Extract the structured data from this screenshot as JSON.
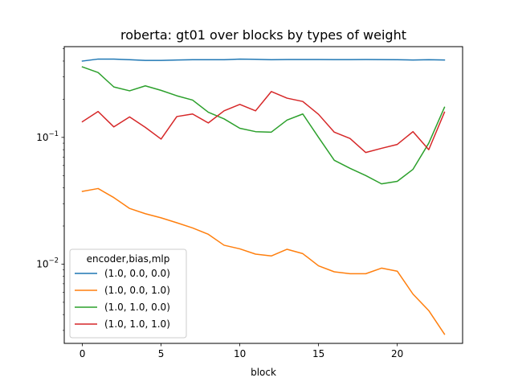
{
  "chart_data": {
    "type": "line",
    "title": "roberta: gt01 over blocks by types of weight",
    "xlabel": "block",
    "ylabel": "",
    "yscale": "log",
    "xlim": [
      -1.15,
      24.15
    ],
    "ylim": [
      0.00237,
      0.52
    ],
    "x_ticks": [
      0,
      5,
      10,
      15,
      20
    ],
    "y_ticks": [
      {
        "value": 0.1,
        "base": "10",
        "exp": "−1"
      },
      {
        "value": 0.01,
        "base": "10",
        "exp": "−2"
      }
    ],
    "x": [
      0,
      1,
      2,
      3,
      4,
      5,
      6,
      7,
      8,
      9,
      10,
      11,
      12,
      13,
      14,
      15,
      16,
      17,
      18,
      19,
      20,
      21,
      22,
      23
    ],
    "legend": {
      "title": "encoder,bias,mlp",
      "position": "lower-left"
    },
    "series": [
      {
        "name": "(1.0, 0.0, 0.0)",
        "color": "#1f77b4",
        "values": [
          0.4,
          0.415,
          0.415,
          0.41,
          0.405,
          0.405,
          0.408,
          0.41,
          0.41,
          0.41,
          0.415,
          0.413,
          0.41,
          0.412,
          0.412,
          0.412,
          0.411,
          0.411,
          0.412,
          0.411,
          0.41,
          0.408,
          0.41,
          0.408
        ]
      },
      {
        "name": "(1.0, 0.0, 1.0)",
        "color": "#ff7f0e",
        "values": [
          0.0375,
          0.0395,
          0.0335,
          0.0275,
          0.025,
          0.0232,
          0.0212,
          0.0193,
          0.0172,
          0.0141,
          0.0132,
          0.012,
          0.0116,
          0.0131,
          0.0121,
          0.0097,
          0.0087,
          0.0084,
          0.0084,
          0.0093,
          0.0088,
          0.0058,
          0.0043,
          0.0028
        ]
      },
      {
        "name": "(1.0, 1.0, 0.0)",
        "color": "#2ca02c",
        "values": [
          0.36,
          0.325,
          0.25,
          0.233,
          0.255,
          0.235,
          0.213,
          0.197,
          0.158,
          0.14,
          0.118,
          0.111,
          0.11,
          0.137,
          0.153,
          0.1,
          0.066,
          0.057,
          0.05,
          0.043,
          0.045,
          0.056,
          0.09,
          0.173
        ]
      },
      {
        "name": "(1.0, 1.0, 1.0)",
        "color": "#d62728",
        "values": [
          0.133,
          0.16,
          0.121,
          0.145,
          0.12,
          0.097,
          0.146,
          0.153,
          0.13,
          0.162,
          0.182,
          0.162,
          0.23,
          0.204,
          0.192,
          0.152,
          0.11,
          0.098,
          0.076,
          0.082,
          0.088,
          0.111,
          0.08,
          0.158
        ]
      }
    ]
  }
}
